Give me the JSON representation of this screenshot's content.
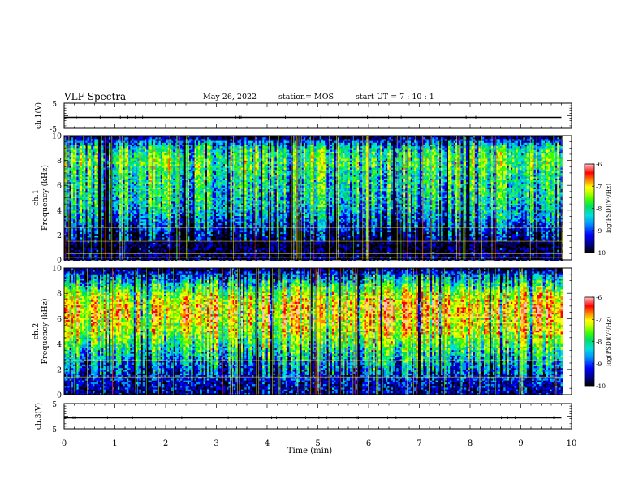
{
  "header": {
    "title": "VLF Spectra",
    "date": "May 26, 2022",
    "station": "station= MOS",
    "start_ut": "start  UT =   7 : 10 : 1"
  },
  "colors": {
    "spectrogram_palette": [
      "#000000",
      "#00007a",
      "#0000ff",
      "#0090ff",
      "#00e0e0",
      "#00e060",
      "#40ff00",
      "#c8ff00",
      "#ffff00",
      "#ff8000",
      "#ff0000",
      "#ffc0c0"
    ],
    "trace": "#000000"
  },
  "chart_data": [
    {
      "type": "line",
      "ylabel": "ch.1(V)",
      "ylim": [
        -5,
        5
      ],
      "yticks": [
        "5",
        "-5"
      ],
      "xlim": [
        0,
        10
      ],
      "series": [
        {
          "x": [
            0,
            9.8
          ],
          "y": [
            0,
            0
          ]
        }
      ]
    },
    {
      "type": "heatmap",
      "ylabel": "ch.1\nFrequency (kHz)",
      "ylabel_line1": "ch.1",
      "ylabel_line2": "Frequency (kHz)",
      "xlim": [
        0,
        10
      ],
      "ylim": [
        0,
        10
      ],
      "yticks": [
        "0",
        "2",
        "4",
        "6",
        "8",
        "10"
      ],
      "colorbar": {
        "label": "log(PSD)(V²/Hz)",
        "range": [
          -10,
          -6
        ],
        "ticks": [
          "-6",
          "-7",
          "-8",
          "-9",
          "-10"
        ]
      },
      "frequency_profile_khz": [
        0,
        1,
        2,
        3,
        4,
        5,
        6,
        7,
        8,
        9,
        10
      ],
      "mean_log_psd": [
        -9.6,
        -9.8,
        -9.5,
        -9.0,
        -8.6,
        -8.4,
        -8.3,
        -8.2,
        -7.9,
        -8.3,
        -9.8
      ]
    },
    {
      "type": "heatmap",
      "ylabel": "ch.2\nFrequency (kHz)",
      "ylabel_line1": "ch.2",
      "ylabel_line2": "Frequency (kHz)",
      "xlim": [
        0,
        10
      ],
      "ylim": [
        0,
        10
      ],
      "yticks": [
        "0",
        "2",
        "4",
        "6",
        "8",
        "10"
      ],
      "colorbar": {
        "label": "log(PSD)(V²/Hz)",
        "range": [
          -10,
          -6
        ],
        "ticks": [
          "-6",
          "-7",
          "-8",
          "-9",
          "-10"
        ]
      },
      "frequency_profile_khz": [
        0,
        1,
        2,
        3,
        4,
        5,
        6,
        7,
        8,
        9,
        10
      ],
      "mean_log_psd": [
        -9.5,
        -9.3,
        -9.0,
        -8.5,
        -8.0,
        -7.4,
        -7.1,
        -7.0,
        -7.6,
        -8.6,
        -9.7
      ]
    },
    {
      "type": "line",
      "ylabel": "ch.3(V)",
      "xlabel": "Time (min)",
      "ylim": [
        -5,
        5
      ],
      "yticks": [
        "5",
        "-5"
      ],
      "xlim": [
        0,
        10
      ],
      "xticks": [
        "0",
        "1",
        "2",
        "3",
        "4",
        "5",
        "6",
        "7",
        "8",
        "9",
        "10"
      ],
      "series": [
        {
          "x": [
            0,
            9.8
          ],
          "y": [
            0,
            0
          ]
        }
      ]
    }
  ]
}
